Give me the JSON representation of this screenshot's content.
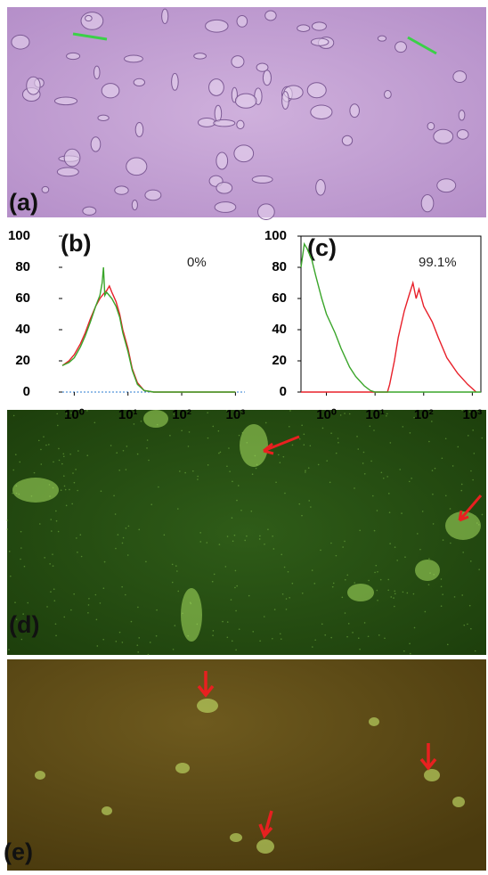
{
  "figure_labels": {
    "a": "(a)",
    "d": "(d)",
    "e": "(e)"
  },
  "chart_data": [
    {
      "type": "line",
      "title": "(b)",
      "annotation": "0%",
      "log_x": true,
      "frame": false,
      "xlim": [
        0.6,
        1500
      ],
      "ylim": [
        0,
        100
      ],
      "xticks": [
        {
          "value": 1,
          "label": "10⁰"
        },
        {
          "value": 10,
          "label": "10¹"
        },
        {
          "value": 100,
          "label": "10²"
        },
        {
          "value": 1000,
          "label": "10³"
        }
      ],
      "yticks": [
        0,
        20,
        40,
        60,
        80,
        100
      ],
      "series": [
        {
          "color": "#e8202a",
          "x": [
            0.6,
            0.8,
            1,
            1.3,
            1.6,
            2,
            2.5,
            3,
            3.5,
            4,
            4.5,
            5,
            6,
            7,
            8,
            10,
            12,
            15,
            20,
            30,
            100,
            1000
          ],
          "values": [
            17,
            20,
            24,
            31,
            38,
            47,
            55,
            60,
            63,
            65,
            68,
            64,
            58,
            50,
            40,
            28,
            15,
            6,
            1,
            0,
            0,
            0
          ]
        },
        {
          "color": "#3aa52a",
          "x": [
            0.6,
            0.8,
            1,
            1.3,
            1.6,
            2,
            2.5,
            3,
            3.3,
            3.5,
            3.7,
            4,
            5,
            6,
            7,
            8,
            10,
            12,
            15,
            20,
            30,
            100,
            1000
          ],
          "values": [
            17,
            19,
            22,
            29,
            36,
            45,
            55,
            62,
            70,
            80,
            62,
            64,
            60,
            55,
            48,
            38,
            26,
            14,
            5,
            1,
            0,
            0,
            0
          ]
        }
      ]
    },
    {
      "type": "line",
      "title": "(c)",
      "annotation": "99.1%",
      "log_x": true,
      "frame": true,
      "xlim": [
        0.3,
        1500
      ],
      "ylim": [
        0,
        100
      ],
      "xticks": [
        {
          "value": 1,
          "label": "10⁰"
        },
        {
          "value": 10,
          "label": "10¹"
        },
        {
          "value": 100,
          "label": "10²"
        },
        {
          "value": 1000,
          "label": "10³"
        }
      ],
      "yticks": [
        0,
        20,
        40,
        60,
        80,
        100
      ],
      "series": [
        {
          "color": "#e8202a",
          "x": [
            0.3,
            1,
            10,
            18,
            20,
            25,
            30,
            40,
            50,
            60,
            70,
            80,
            100,
            150,
            200,
            300,
            500,
            800,
            1200
          ],
          "values": [
            0,
            0,
            0,
            0,
            5,
            20,
            35,
            52,
            62,
            70,
            60,
            66,
            55,
            45,
            35,
            22,
            12,
            5,
            0
          ]
        },
        {
          "color": "#3aa52a",
          "x": [
            0.3,
            0.35,
            0.4,
            0.5,
            0.6,
            0.8,
            1,
            1.5,
            2,
            3,
            4,
            6,
            8,
            10,
            20,
            100,
            1500
          ],
          "values": [
            80,
            95,
            92,
            85,
            75,
            60,
            50,
            38,
            28,
            16,
            10,
            4,
            1,
            0,
            0,
            0,
            0
          ]
        }
      ]
    }
  ]
}
